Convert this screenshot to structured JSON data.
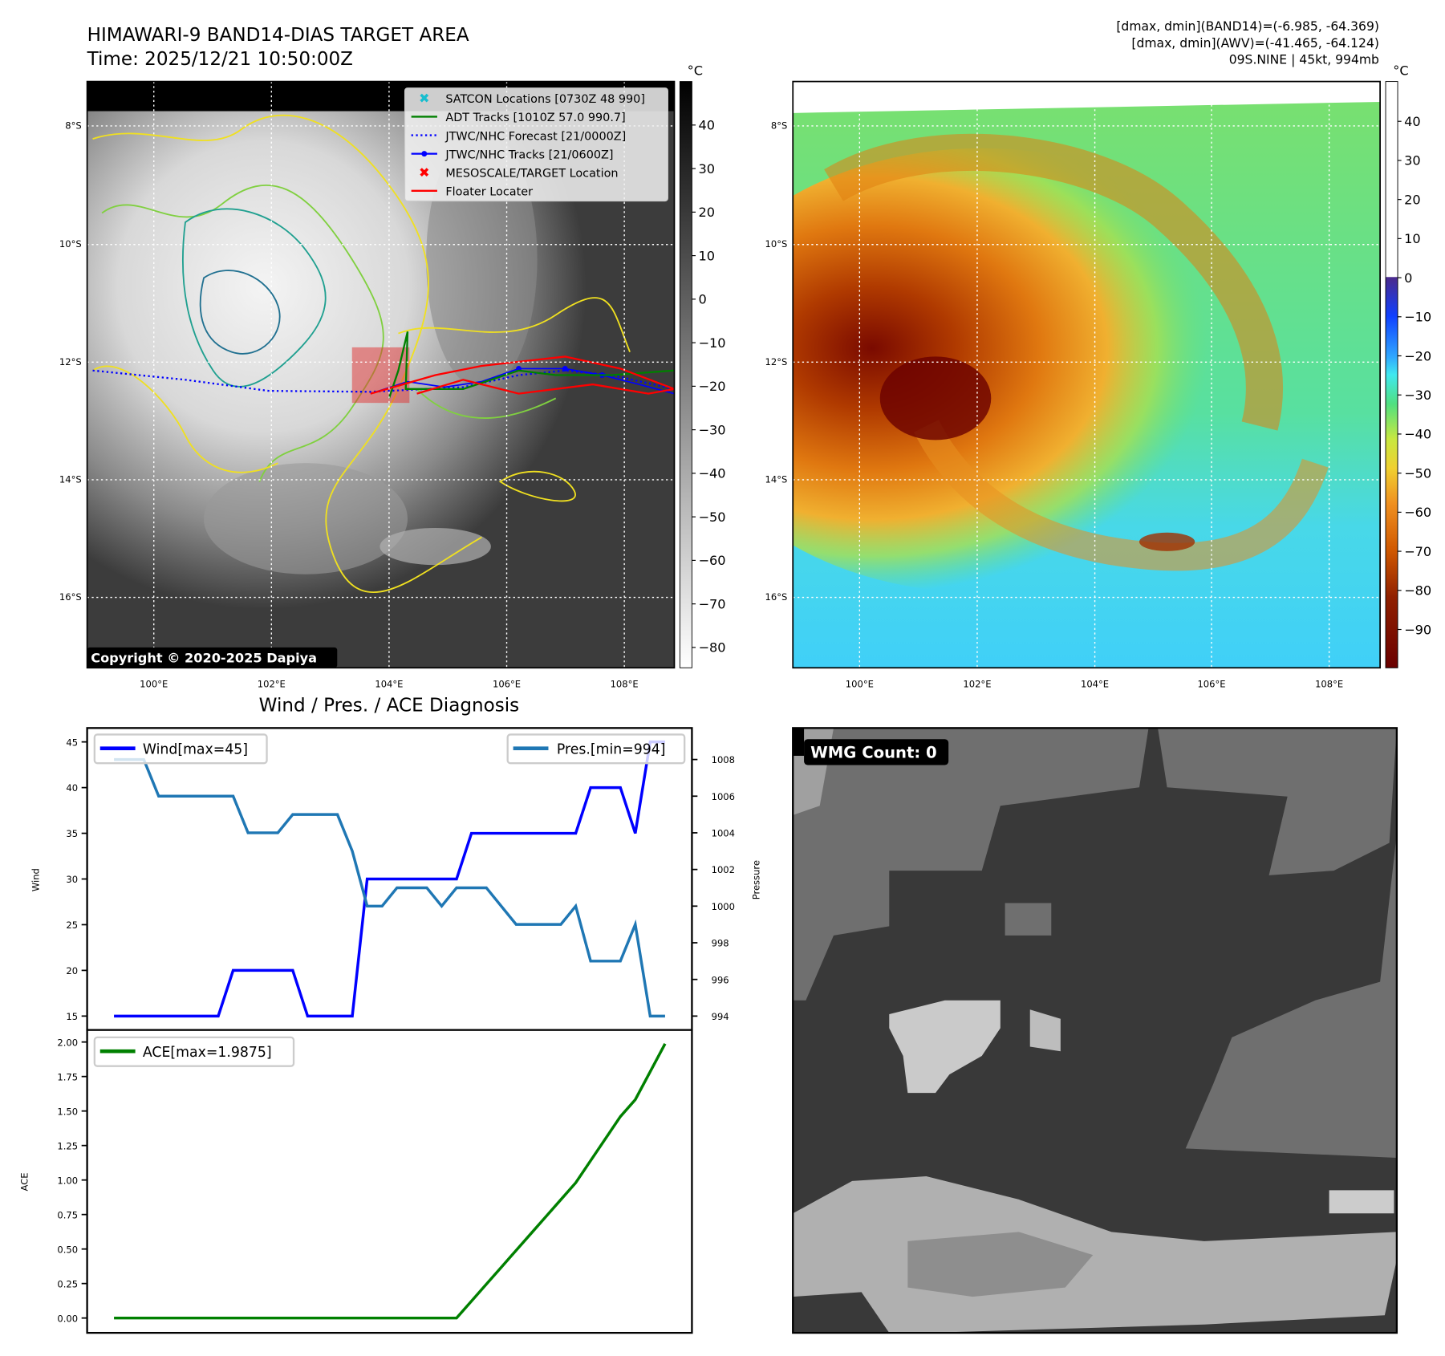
{
  "header": {
    "title": "HIMAWARI-9 BAND14-DIAS TARGET AREA",
    "time": "Time: 2025/12/21 10:50:00Z",
    "info_line1": "[dmax, dmin](BAND14)=(-6.985, -64.369)",
    "info_line2": "[dmax, dmin](AWV)=(-41.465, -64.124)",
    "info_line3": "09S.NINE | 45kt, 994mb"
  },
  "maps": {
    "lat_labels": [
      "8°S",
      "10°S",
      "12°S",
      "14°S",
      "16°S"
    ],
    "lon_labels": [
      "100°E",
      "102°E",
      "104°E",
      "106°E",
      "108°E"
    ],
    "copyright": "Copyright © 2020-2025 Dapiya",
    "legend": [
      {
        "label": "SATCON Locations [0730Z 48 990]",
        "color": "#17becf",
        "symbol": "x"
      },
      {
        "label": "ADT Tracks [1010Z 57.0 990.7]",
        "color": "#008000",
        "symbol": "line"
      },
      {
        "label": "JTWC/NHC Forecast [21/0000Z]",
        "color": "#0000ff",
        "symbol": "dotted"
      },
      {
        "label": "JTWC/NHC Tracks [21/0600Z]",
        "color": "#0000ff",
        "symbol": "line-dot"
      },
      {
        "label": "MESOSCALE/TARGET Location",
        "color": "#ff0000",
        "symbol": "x"
      },
      {
        "label": "Floater Locater",
        "color": "#ff0000",
        "symbol": "line"
      }
    ],
    "left_colorbar": {
      "unit": "°C",
      "ticks": [
        "40",
        "30",
        "20",
        "10",
        "0",
        "−10",
        "−20",
        "−30",
        "−40",
        "−50",
        "−60",
        "−70",
        "−80"
      ]
    },
    "right_colorbar": {
      "unit": "°C",
      "ticks": [
        "40",
        "30",
        "20",
        "10",
        "0",
        "−10",
        "−20",
        "−30",
        "−40",
        "−50",
        "−60",
        "−70",
        "−80",
        "−90"
      ]
    },
    "wmg_label": "WMG Count: 0"
  },
  "chart_data": [
    {
      "type": "line",
      "title": "Wind / Pres. / ACE Diagnosis",
      "ylabel": "Wind",
      "y2label": "Pressure",
      "ylim": [
        15,
        45
      ],
      "y2lim": [
        994,
        1008
      ],
      "yticks": [
        "45",
        "40",
        "35",
        "30",
        "25",
        "20",
        "15"
      ],
      "y2ticks": [
        "1008",
        "1006",
        "1004",
        "1002",
        "1000",
        "998",
        "996",
        "994"
      ],
      "series": [
        {
          "name": "Wind[max=45]",
          "color": "#0000ff",
          "axis": "left",
          "values": [
            15,
            15,
            15,
            15,
            15,
            15,
            15,
            15,
            20,
            20,
            20,
            20,
            20,
            15,
            15,
            15,
            15,
            30,
            30,
            30,
            30,
            30,
            30,
            30,
            35,
            35,
            35,
            35,
            35,
            35,
            35,
            35,
            40,
            40,
            40,
            35,
            45,
            45
          ]
        },
        {
          "name": "Pres.[min=994]",
          "color": "#1f77b4",
          "axis": "right",
          "values": [
            1008,
            1008,
            1008,
            1006,
            1006,
            1006,
            1006,
            1006,
            1006,
            1004,
            1004,
            1004,
            1005,
            1005,
            1005,
            1005,
            1003,
            1000,
            1000,
            1001,
            1001,
            1001,
            1000,
            1001,
            1001,
            1001,
            1000,
            999,
            999,
            999,
            999,
            1000,
            997,
            997,
            997,
            999,
            994,
            994
          ]
        }
      ]
    },
    {
      "type": "line",
      "ylabel": "ACE",
      "ylim": [
        0,
        2.0
      ],
      "yticks": [
        "2.00",
        "1.75",
        "1.50",
        "1.25",
        "1.00",
        "0.75",
        "0.50",
        "0.25",
        "0.00"
      ],
      "series": [
        {
          "name": "ACE[max=1.9875]",
          "color": "#008000",
          "values": [
            0,
            0,
            0,
            0,
            0,
            0,
            0,
            0,
            0,
            0,
            0,
            0,
            0,
            0,
            0,
            0,
            0,
            0,
            0,
            0,
            0,
            0,
            0,
            0,
            0.1225,
            0.245,
            0.3675,
            0.49,
            0.6125,
            0.735,
            0.8575,
            0.98,
            1.14,
            1.3,
            1.46,
            1.5825,
            1.785,
            1.9875
          ]
        }
      ]
    }
  ]
}
